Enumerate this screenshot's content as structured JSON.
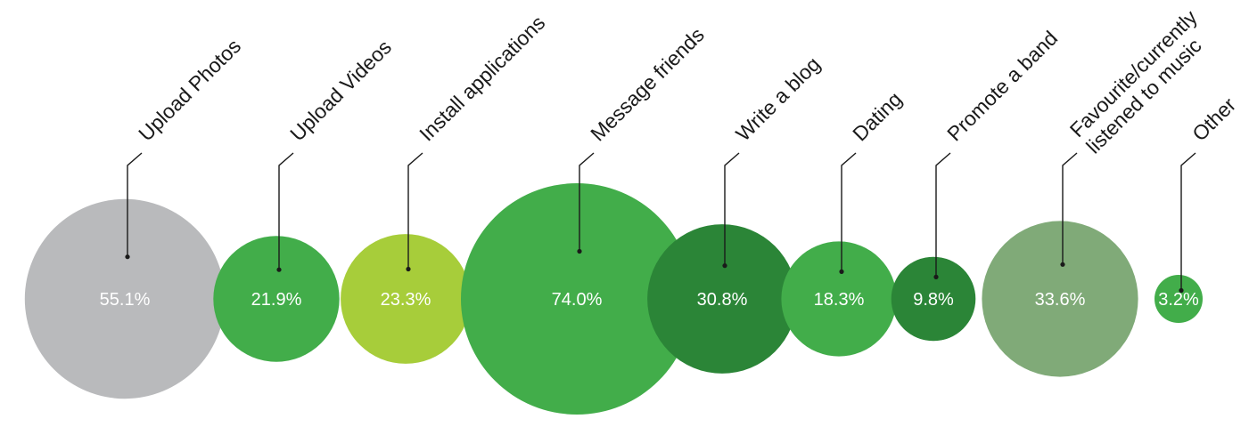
{
  "chart_data": {
    "type": "bubble",
    "unit": "%",
    "items": [
      {
        "label": [
          "Upload Photos"
        ],
        "value": 55.1,
        "value_label": "55.1%",
        "color": "#b9babc"
      },
      {
        "label": [
          "Upload Videos"
        ],
        "value": 21.9,
        "value_label": "21.9%",
        "color": "#42ad4a"
      },
      {
        "label": [
          "Install applications"
        ],
        "value": 23.3,
        "value_label": "23.3%",
        "color": "#a7cd3a"
      },
      {
        "label": [
          "Message friends"
        ],
        "value": 74.0,
        "value_label": "74.0%",
        "color": "#42ad4a"
      },
      {
        "label": [
          "Write a blog"
        ],
        "value": 30.8,
        "value_label": "30.8%",
        "color": "#2b8537"
      },
      {
        "label": [
          "Dating"
        ],
        "value": 18.3,
        "value_label": "18.3%",
        "color": "#42ad4a"
      },
      {
        "label": [
          "Promote a band"
        ],
        "value": 9.8,
        "value_label": "9.8%",
        "color": "#2b8537"
      },
      {
        "label": [
          "Favourite/currently",
          "listened to music"
        ],
        "value": 33.6,
        "value_label": "33.6%",
        "color": "#80aa78"
      },
      {
        "label": [
          "Other"
        ],
        "value": 3.2,
        "value_label": "3.2%",
        "color": "#42ad4a"
      }
    ]
  }
}
